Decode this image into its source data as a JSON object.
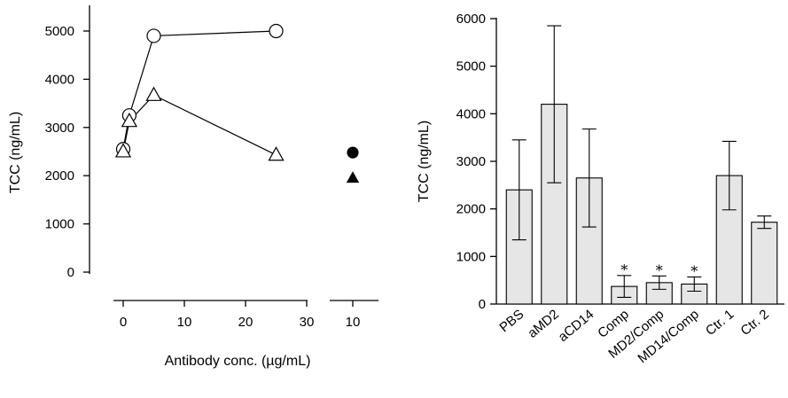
{
  "chart_data": [
    {
      "type": "line",
      "ylabel": "TCC (ng/mL)",
      "xlabel": "Antibody conc. (µg/mL)",
      "ylim": [
        0,
        5000
      ],
      "yticks": [
        "0",
        "1000",
        "2000",
        "3000",
        "4000",
        "5000"
      ],
      "xticks_main": [
        "0",
        "10",
        "20",
        "30"
      ],
      "xticks_break": [
        "10"
      ],
      "xlim_main": [
        0,
        30
      ],
      "series": [
        {
          "marker": "circle-open",
          "x": [
            0,
            1,
            5,
            25
          ],
          "y": [
            2550,
            3250,
            4900,
            5000
          ]
        },
        {
          "marker": "triangle-open",
          "x": [
            0,
            1,
            5,
            25
          ],
          "y": [
            2500,
            3130,
            3670,
            2430
          ]
        }
      ],
      "control_points": [
        {
          "marker": "circle-filled",
          "x": 10,
          "y": 2480
        },
        {
          "marker": "triangle-filled",
          "x": 10,
          "y": 1950
        }
      ]
    },
    {
      "type": "bar",
      "ylabel": "TCC (ng/mL)",
      "ylim": [
        0,
        6000
      ],
      "yticks": [
        "0",
        "1000",
        "2000",
        "3000",
        "4000",
        "5000",
        "6000"
      ],
      "categories": [
        "PBS",
        "aMD2",
        "aCD14",
        "Comp",
        "MD2/Comp",
        "MD14/Comp",
        "Ctr. 1",
        "Ctr. 2"
      ],
      "values": [
        2400,
        4200,
        2650,
        370,
        450,
        420,
        2700,
        1720
      ],
      "errors": [
        1050,
        1650,
        1030,
        230,
        140,
        150,
        720,
        130
      ],
      "significance": [
        "",
        "",
        "",
        "*",
        "*",
        "*",
        "",
        ""
      ]
    }
  ]
}
